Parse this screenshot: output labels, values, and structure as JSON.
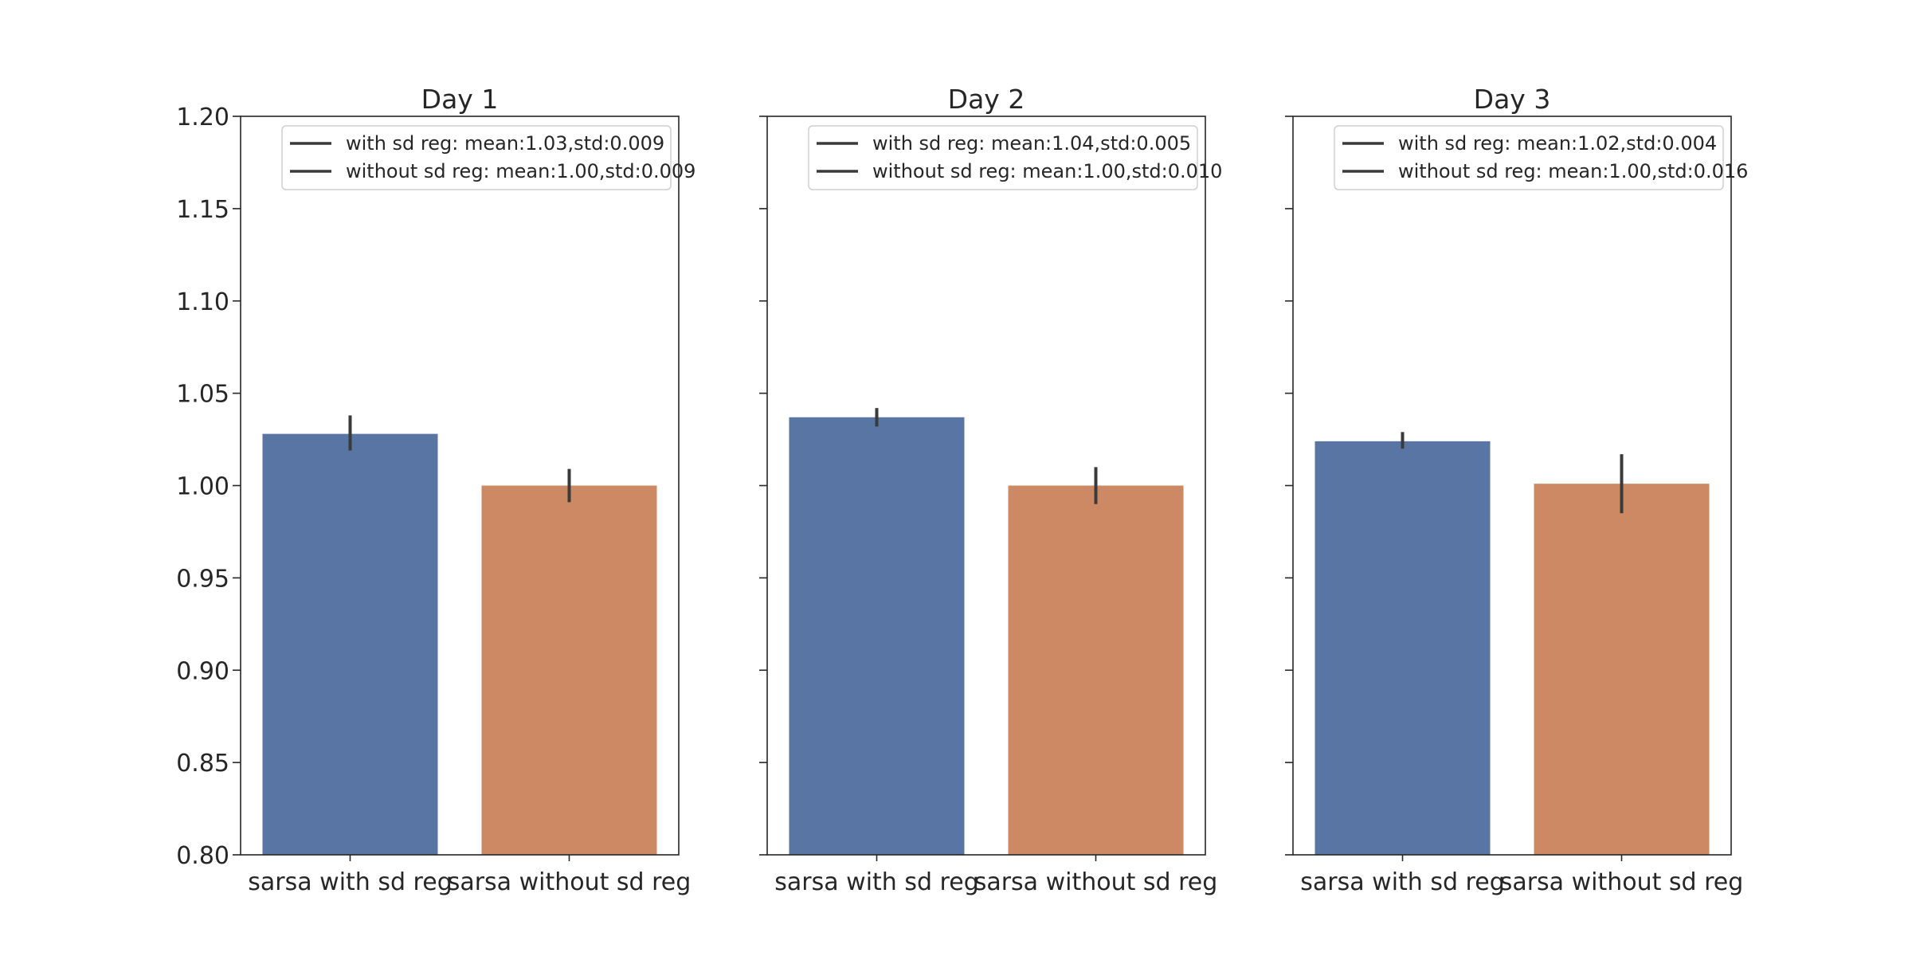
{
  "chart_data": [
    {
      "type": "bar",
      "title": "Day 1",
      "categories": [
        "sarsa with sd reg",
        "sarsa without sd reg"
      ],
      "values": [
        1.028,
        1.0
      ],
      "error_low": [
        1.019,
        0.991
      ],
      "error_high": [
        1.038,
        1.009
      ],
      "colors": [
        "#5875a4",
        "#cc8963"
      ],
      "ylim": [
        0.8,
        1.2
      ],
      "yticks": [
        "0.80",
        "0.85",
        "0.90",
        "0.95",
        "1.00",
        "1.05",
        "1.10",
        "1.15",
        "1.20"
      ],
      "legend": [
        "with sd reg: mean:1.03,std:0.009",
        "without sd reg: mean:1.00,std:0.009"
      ],
      "legend_position": "top-right"
    },
    {
      "type": "bar",
      "title": "Day 2",
      "categories": [
        "sarsa with sd reg",
        "sarsa without sd reg"
      ],
      "values": [
        1.037,
        1.0
      ],
      "error_low": [
        1.032,
        0.99
      ],
      "error_high": [
        1.042,
        1.01
      ],
      "colors": [
        "#5875a4",
        "#cc8963"
      ],
      "ylim": [
        0.8,
        1.2
      ],
      "legend": [
        "with sd reg: mean:1.04,std:0.005",
        "without sd reg: mean:1.00,std:0.010"
      ],
      "legend_position": "top-right"
    },
    {
      "type": "bar",
      "title": "Day 3",
      "categories": [
        "sarsa with sd reg",
        "sarsa without sd reg"
      ],
      "values": [
        1.024,
        1.001
      ],
      "error_low": [
        1.02,
        0.985
      ],
      "error_high": [
        1.029,
        1.017
      ],
      "colors": [
        "#5875a4",
        "#cc8963"
      ],
      "ylim": [
        0.8,
        1.2
      ],
      "legend": [
        "with sd reg: mean:1.02,std:0.004",
        "without sd reg: mean:1.00,std:0.016"
      ],
      "legend_position": "top-right"
    }
  ]
}
